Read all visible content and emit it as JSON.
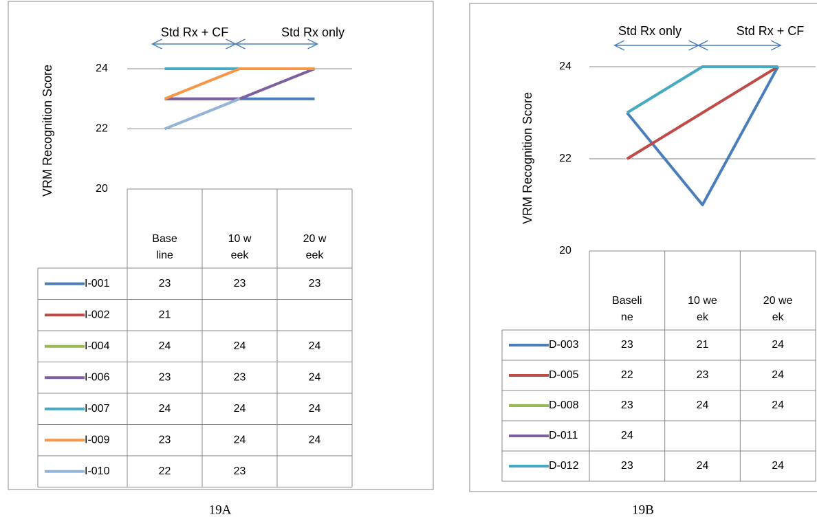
{
  "chart_data": [
    {
      "type": "line",
      "caption": "19A",
      "ylabel": "VRM Recognition  Score",
      "annotations": [
        "Std Rx + CF",
        "Std Rx only"
      ],
      "categories": [
        "Baseline",
        "10 week",
        "20 week"
      ],
      "ylim": [
        20,
        24
      ],
      "yticks": [
        20,
        22,
        24
      ],
      "grid": true,
      "series": [
        {
          "name": "I-001",
          "color": "#4a7ebb",
          "values": [
            23,
            23,
            23
          ]
        },
        {
          "name": "I-002",
          "color": "#be4b48",
          "values": [
            21,
            null,
            null
          ]
        },
        {
          "name": "I-004",
          "color": "#98b954",
          "values": [
            24,
            24,
            24
          ]
        },
        {
          "name": "I-006",
          "color": "#7d60a0",
          "values": [
            23,
            23,
            24
          ]
        },
        {
          "name": "I-007",
          "color": "#46aac5",
          "values": [
            24,
            24,
            24
          ]
        },
        {
          "name": "I-009",
          "color": "#f79646",
          "values": [
            23,
            24,
            24
          ]
        },
        {
          "name": "I-010",
          "color": "#95b3d7",
          "values": [
            22,
            23,
            null
          ]
        }
      ]
    },
    {
      "type": "line",
      "caption": "19B",
      "ylabel": "VRM Recognition Score",
      "annotations": [
        "Std Rx only",
        "Std Rx + CF"
      ],
      "categories": [
        "Baseline",
        "10 week",
        "20 week"
      ],
      "ylim": [
        20,
        24
      ],
      "yticks": [
        20,
        22,
        24
      ],
      "grid": true,
      "series": [
        {
          "name": "D-003",
          "color": "#4a7ebb",
          "values": [
            23,
            21,
            24
          ]
        },
        {
          "name": "D-005",
          "color": "#be4b48",
          "values": [
            22,
            23,
            24
          ]
        },
        {
          "name": "D-008",
          "color": "#98b954",
          "values": [
            23,
            24,
            24
          ]
        },
        {
          "name": "D-011",
          "color": "#7d60a0",
          "values": [
            24,
            null,
            null
          ]
        },
        {
          "name": "D-012",
          "color": "#46aac5",
          "values": [
            23,
            24,
            24
          ]
        }
      ]
    }
  ]
}
